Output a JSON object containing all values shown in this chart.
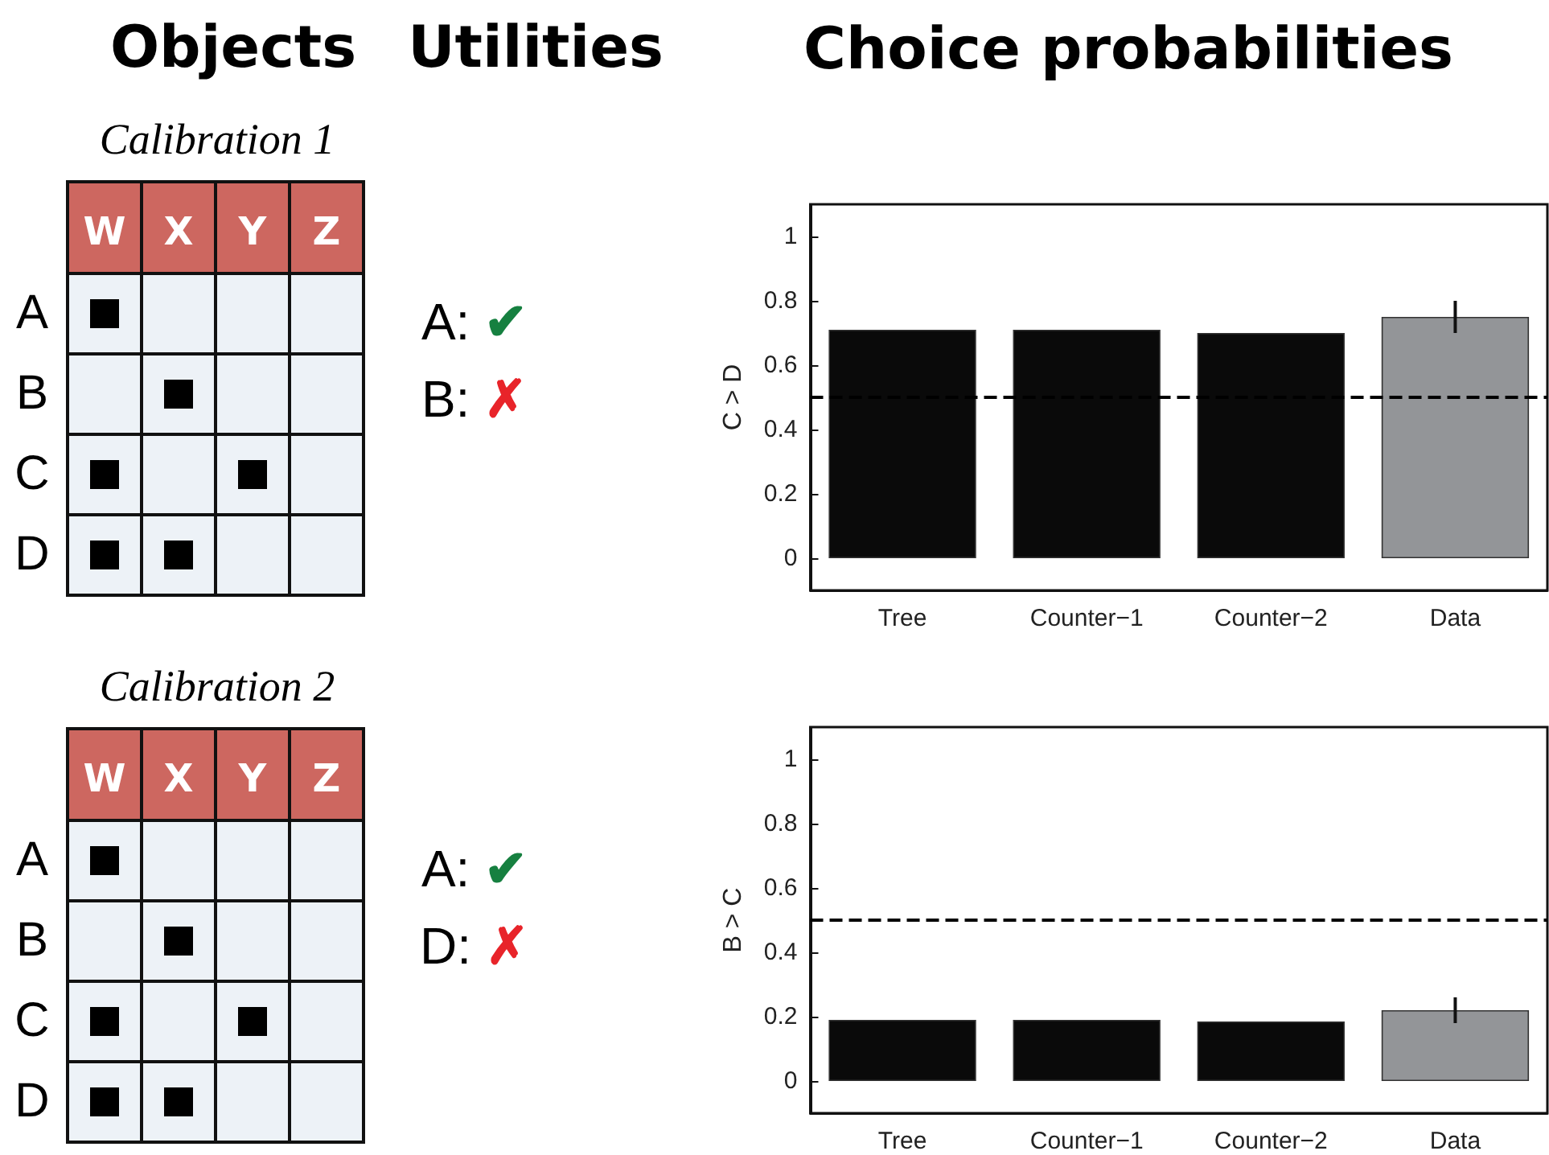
{
  "chart_data": [
    {
      "type": "other",
      "title": "Calibration 1",
      "annotations": [
        "Objects",
        "Utilities",
        "W",
        "X",
        "Y",
        "Z",
        "A",
        "B",
        "C",
        "D",
        "A: ✔",
        "B: ✗"
      ]
    },
    {
      "type": "bar",
      "title": "Choice probabilities",
      "categories": [
        "Tree",
        "Counter−1",
        "Counter−2",
        "Data"
      ],
      "values": [
        0.71,
        0.71,
        0.7,
        0.75
      ],
      "colors": [
        "#0a0a0a",
        "#0a0a0a",
        "#0a0a0a",
        "#939598"
      ],
      "errors": [
        null,
        null,
        null,
        0.05
      ],
      "ylabel": "C > D",
      "ylim": [
        -0.1,
        1.1
      ],
      "yticks": [
        0,
        0.2,
        0.4,
        0.6,
        0.8,
        1
      ],
      "grid": false,
      "ref_lines": [
        {
          "axis": "y",
          "value": 0.5,
          "color": "#000000",
          "line_style": "dashed"
        }
      ]
    },
    {
      "type": "other",
      "title": "Calibration 2",
      "annotations": [
        "W",
        "X",
        "Y",
        "Z",
        "A",
        "B",
        "C",
        "D",
        "A: ✔",
        "D: ✗"
      ]
    },
    {
      "type": "bar",
      "categories": [
        "Tree",
        "Counter−1",
        "Counter−2",
        "Data"
      ],
      "values": [
        0.19,
        0.19,
        0.185,
        0.22
      ],
      "colors": [
        "#0a0a0a",
        "#0a0a0a",
        "#0a0a0a",
        "#939598"
      ],
      "errors": [
        null,
        null,
        null,
        [
          0.18,
          0.26
        ]
      ],
      "ylabel": "B > C",
      "ylim": [
        -0.1,
        1.1
      ],
      "yticks": [
        0,
        0.2,
        0.4,
        0.6,
        0.8,
        1
      ],
      "grid": false,
      "ref_lines": [
        {
          "axis": "y",
          "value": 0.5,
          "color": "#000000",
          "line_style": "dashed"
        }
      ]
    }
  ]
}
